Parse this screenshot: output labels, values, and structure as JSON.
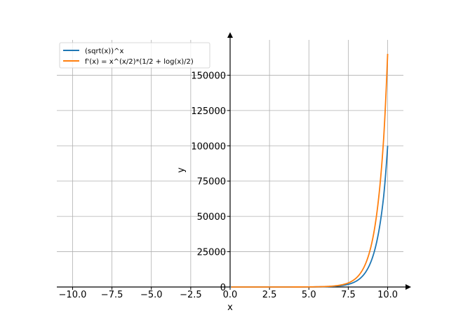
{
  "chart_data": {
    "type": "line",
    "title": "",
    "xlabel": "x",
    "ylabel": "y",
    "xlim": [
      -11.0,
      11.0
    ],
    "ylim": [
      0,
      175000
    ],
    "grid": true,
    "legend_position": "top-left",
    "x_ticks": [
      -10.0,
      -7.5,
      -5.0,
      -2.5,
      0.0,
      2.5,
      5.0,
      7.5,
      10.0
    ],
    "x_tick_labels": [
      "−10.0",
      "−7.5",
      "−5.0",
      "−2.5",
      "0.0",
      "2.5",
      "5.0",
      "7.5",
      "10.0"
    ],
    "y_ticks": [
      0,
      25000,
      50000,
      75000,
      100000,
      125000,
      150000
    ],
    "y_tick_labels": [
      "0",
      "25000",
      "50000",
      "75000",
      "100000",
      "125000",
      "150000"
    ],
    "series": [
      {
        "name": "(sqrt(x))^x",
        "color": "#1f77b4",
        "x": [
          0,
          1,
          2,
          3,
          4,
          5,
          6,
          6.5,
          7,
          7.5,
          8,
          8.5,
          9,
          9.25,
          9.5,
          9.75,
          10
        ],
        "y": [
          1,
          1,
          2,
          5.2,
          16,
          55.9,
          216,
          439,
          907,
          1910,
          4096,
          8950,
          19683,
          29250,
          43440,
          64460,
          100000
        ]
      },
      {
        "name": "f'(x) = x^(x/2)*(1/2 + log(x)/2)",
        "color": "#ff7f0e",
        "x": [
          0.05,
          1,
          2,
          3,
          4,
          5,
          6,
          6.5,
          7,
          7.5,
          8,
          8.5,
          9,
          9.25,
          9.5,
          9.75,
          10
        ],
        "y": [
          0,
          0.5,
          1.69,
          5.45,
          19.1,
          72.9,
          302,
          630,
          1336,
          2880,
          6307,
          14050,
          31466,
          47160,
          70620,
          105700,
          165130
        ]
      }
    ]
  }
}
